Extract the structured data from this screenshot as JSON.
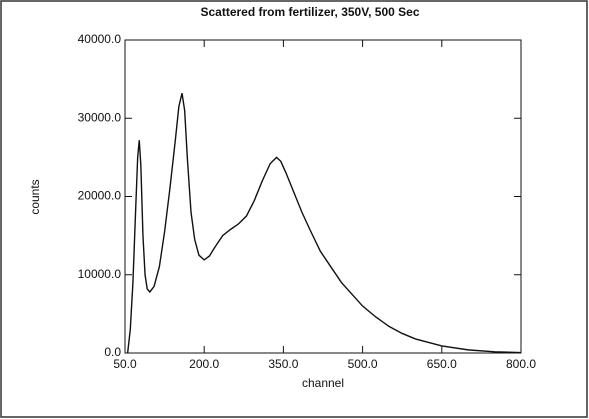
{
  "chart_data": {
    "type": "line",
    "title": "Scattered from fertilizer, 350V, 500 Sec",
    "x_label": "channel",
    "y_label": "counts",
    "x": [
      55,
      60,
      65,
      70,
      74,
      77,
      80,
      84,
      88,
      92,
      97,
      105,
      115,
      125,
      135,
      145,
      152,
      158,
      163,
      168,
      175,
      182,
      190,
      200,
      210,
      220,
      235,
      250,
      265,
      280,
      295,
      310,
      325,
      337,
      345,
      355,
      370,
      385,
      400,
      420,
      440,
      460,
      480,
      500,
      525,
      550,
      575,
      600,
      650,
      700,
      750,
      800
    ],
    "series": [
      {
        "color": "#111111",
        "values": [
          0,
          3000,
          9000,
          18000,
          25000,
          27200,
          24000,
          15000,
          10000,
          8200,
          7800,
          8500,
          11000,
          15500,
          21000,
          27000,
          31500,
          33200,
          31000,
          25000,
          18000,
          14500,
          12500,
          11900,
          12400,
          13500,
          15000,
          15800,
          16500,
          17500,
          19500,
          22000,
          24200,
          25000,
          24500,
          23000,
          20500,
          18000,
          15800,
          13000,
          11000,
          9000,
          7500,
          6000,
          4600,
          3400,
          2500,
          1800,
          900,
          400,
          150,
          50
        ]
      }
    ],
    "xlim": [
      50,
      800
    ],
    "xticks": [
      {
        "value": 50,
        "label": "50.0"
      },
      {
        "value": 200,
        "label": "200.0"
      },
      {
        "value": 350,
        "label": "350.0"
      },
      {
        "value": 500,
        "label": "500.0"
      },
      {
        "value": 650,
        "label": "650.0"
      },
      {
        "value": 800,
        "label": "800.0"
      }
    ],
    "ylim": [
      0,
      40000
    ],
    "yticks": [
      {
        "value": 0,
        "label": "0.0"
      },
      {
        "value": 10000,
        "label": "10000.0"
      },
      {
        "value": 20000,
        "label": "20000.0"
      },
      {
        "value": 30000,
        "label": "30000.0"
      },
      {
        "value": 40000,
        "label": "40000.0"
      }
    ],
    "grid": false
  }
}
